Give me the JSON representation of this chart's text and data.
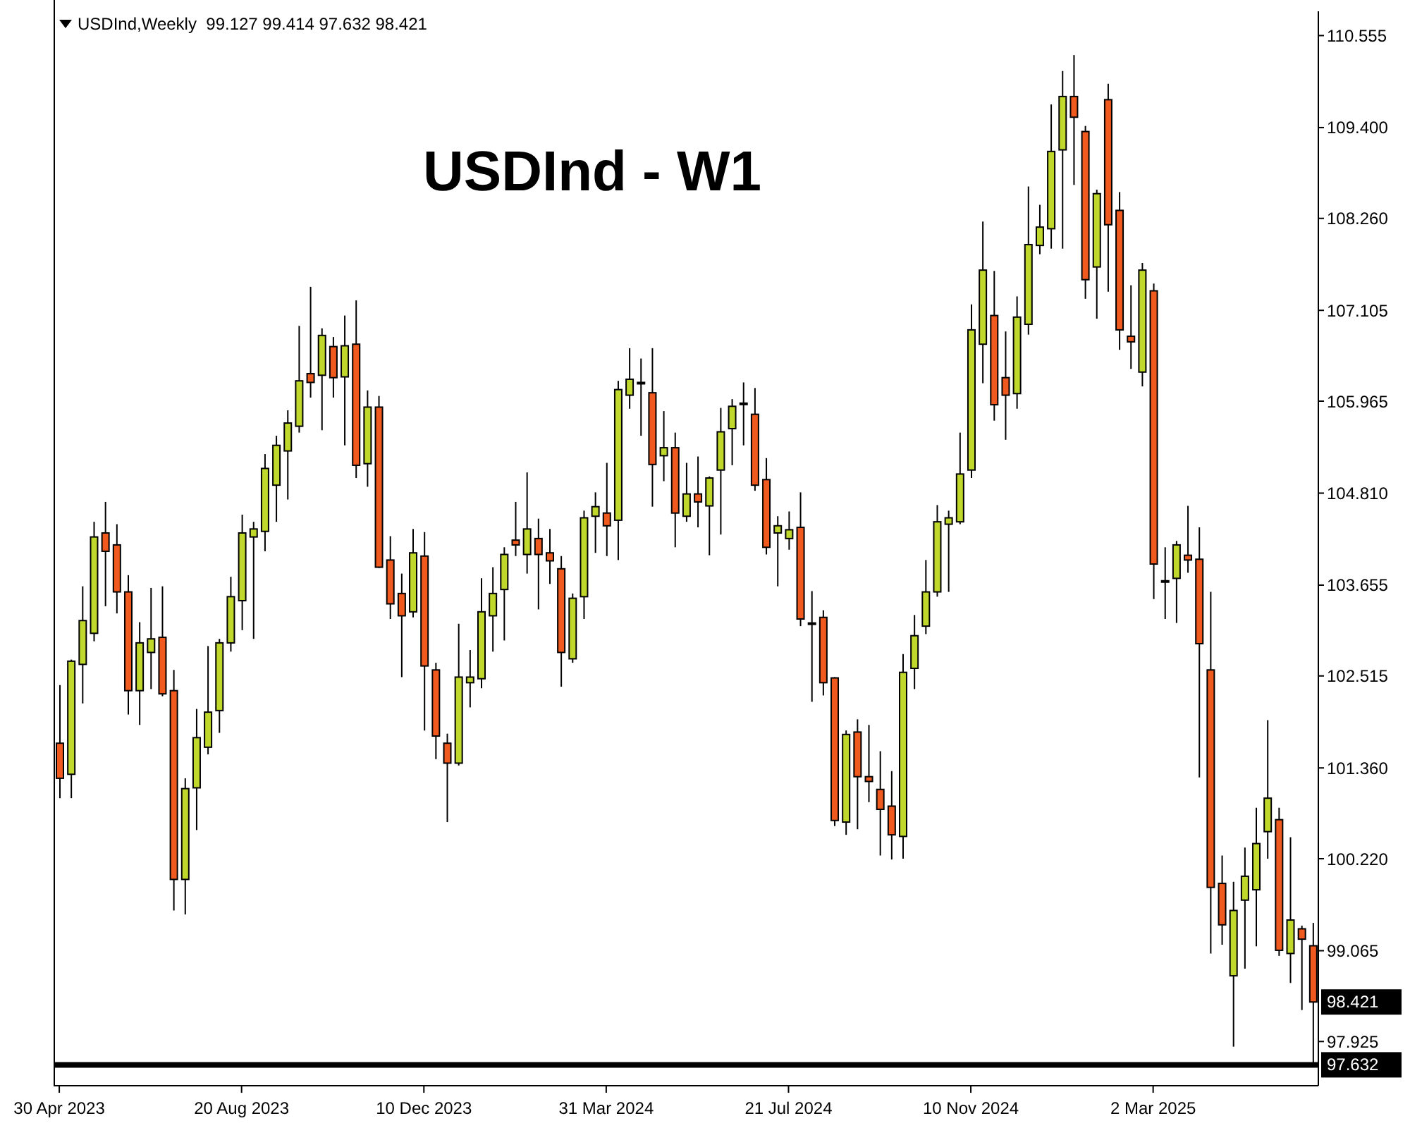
{
  "chart_data": {
    "type": "candlestick",
    "title": "USDInd - W1",
    "subtitle": "USDInd,Weekly  99.127 99.414 97.632 98.421",
    "categories": [
      "30 Apr 2023",
      null,
      null,
      null,
      null,
      null,
      null,
      null,
      null,
      null,
      null,
      null,
      null,
      null,
      null,
      null,
      "20 Aug 2023",
      null,
      null,
      null,
      null,
      null,
      null,
      null,
      null,
      null,
      null,
      null,
      null,
      null,
      null,
      null,
      "10 Dec 2023",
      null,
      null,
      null,
      null,
      null,
      null,
      null,
      null,
      null,
      null,
      null,
      null,
      null,
      null,
      null,
      "31 Mar 2024",
      null,
      null,
      null,
      null,
      null,
      null,
      null,
      null,
      null,
      null,
      null,
      null,
      null,
      null,
      null,
      "21 Jul 2024",
      null,
      null,
      null,
      null,
      null,
      null,
      null,
      null,
      null,
      null,
      null,
      null,
      null,
      null,
      null,
      "10 Nov 2024",
      null,
      null,
      null,
      null,
      null,
      null,
      null,
      null,
      null,
      null,
      null,
      null,
      null,
      null,
      null,
      "2 Mar 2025",
      null,
      null,
      null,
      null,
      null,
      null,
      null,
      null,
      null,
      null,
      null,
      null,
      null,
      null
    ],
    "ohlc": [
      [
        101.67,
        102.4,
        100.98,
        101.23
      ],
      [
        101.28,
        102.72,
        100.98,
        102.7
      ],
      [
        102.66,
        103.64,
        102.17,
        103.21
      ],
      [
        103.05,
        104.45,
        102.95,
        104.26
      ],
      [
        104.31,
        104.7,
        103.39,
        104.08
      ],
      [
        104.16,
        104.42,
        103.3,
        103.57
      ],
      [
        103.57,
        103.78,
        102.03,
        102.33
      ],
      [
        102.33,
        103.19,
        101.9,
        102.93
      ],
      [
        102.81,
        103.62,
        102.35,
        102.98
      ],
      [
        103.0,
        103.64,
        102.26,
        102.29
      ],
      [
        102.33,
        102.59,
        99.57,
        99.96
      ],
      [
        99.96,
        101.23,
        99.52,
        101.1
      ],
      [
        101.11,
        102.1,
        100.58,
        101.74
      ],
      [
        101.62,
        102.89,
        101.53,
        102.06
      ],
      [
        102.08,
        102.98,
        101.8,
        102.93
      ],
      [
        102.93,
        103.76,
        102.82,
        103.51
      ],
      [
        103.46,
        104.54,
        103.09,
        104.31
      ],
      [
        104.26,
        104.45,
        102.98,
        104.36
      ],
      [
        104.33,
        105.3,
        104.08,
        105.12
      ],
      [
        104.91,
        105.53,
        104.45,
        105.41
      ],
      [
        105.34,
        105.85,
        104.73,
        105.69
      ],
      [
        105.65,
        106.91,
        105.57,
        106.22
      ],
      [
        106.31,
        107.4,
        106.01,
        106.2
      ],
      [
        106.29,
        106.88,
        105.6,
        106.79
      ],
      [
        106.65,
        106.77,
        106.01,
        106.26
      ],
      [
        106.27,
        107.04,
        105.41,
        106.66
      ],
      [
        106.68,
        107.23,
        105.0,
        105.16
      ],
      [
        105.18,
        106.1,
        104.89,
        105.89
      ],
      [
        105.89,
        106.03,
        103.87,
        103.88
      ],
      [
        103.97,
        104.27,
        103.23,
        103.42
      ],
      [
        103.55,
        103.8,
        102.5,
        103.27
      ],
      [
        103.32,
        104.36,
        103.25,
        104.06
      ],
      [
        104.02,
        104.32,
        101.83,
        102.64
      ],
      [
        102.59,
        102.68,
        101.47,
        101.76
      ],
      [
        101.67,
        101.79,
        100.68,
        101.42
      ],
      [
        101.42,
        103.17,
        101.39,
        102.5
      ],
      [
        102.43,
        102.84,
        102.12,
        102.5
      ],
      [
        102.48,
        103.74,
        102.36,
        103.32
      ],
      [
        103.27,
        103.88,
        102.82,
        103.55
      ],
      [
        103.6,
        104.13,
        102.96,
        104.04
      ],
      [
        104.22,
        104.7,
        104.02,
        104.16
      ],
      [
        104.04,
        105.07,
        103.8,
        104.36
      ],
      [
        104.24,
        104.49,
        103.35,
        104.04
      ],
      [
        104.06,
        104.36,
        103.67,
        103.96
      ],
      [
        103.86,
        104.02,
        102.38,
        102.81
      ],
      [
        102.73,
        103.55,
        102.68,
        103.49
      ],
      [
        103.51,
        104.59,
        103.23,
        104.5
      ],
      [
        104.52,
        104.82,
        104.06,
        104.64
      ],
      [
        104.56,
        105.19,
        104.02,
        104.4
      ],
      [
        104.47,
        106.22,
        103.97,
        106.11
      ],
      [
        106.04,
        106.63,
        105.87,
        106.24
      ],
      [
        106.2,
        106.5,
        105.53,
        106.2
      ],
      [
        106.07,
        106.63,
        104.64,
        105.17
      ],
      [
        105.28,
        105.84,
        104.96,
        105.38
      ],
      [
        105.38,
        105.57,
        104.13,
        104.56
      ],
      [
        104.52,
        105.19,
        104.45,
        104.8
      ],
      [
        104.8,
        105.27,
        104.38,
        104.7
      ],
      [
        104.65,
        105.02,
        104.03,
        105.0
      ],
      [
        105.1,
        105.88,
        104.29,
        105.58
      ],
      [
        105.62,
        105.99,
        105.16,
        105.9
      ],
      [
        105.94,
        106.2,
        105.41,
        105.94
      ],
      [
        105.8,
        106.13,
        104.84,
        104.91
      ],
      [
        104.98,
        105.25,
        104.04,
        104.13
      ],
      [
        104.31,
        104.52,
        103.64,
        104.4
      ],
      [
        104.24,
        104.58,
        104.1,
        104.35
      ],
      [
        104.38,
        104.82,
        103.14,
        103.23
      ],
      [
        103.18,
        103.58,
        102.19,
        103.18
      ],
      [
        103.25,
        103.34,
        102.27,
        102.43
      ],
      [
        102.49,
        102.5,
        100.63,
        100.7
      ],
      [
        100.68,
        101.83,
        100.52,
        101.78
      ],
      [
        101.81,
        101.97,
        100.59,
        101.25
      ],
      [
        101.25,
        101.9,
        100.93,
        101.19
      ],
      [
        101.09,
        101.57,
        100.26,
        100.84
      ],
      [
        100.88,
        101.32,
        100.21,
        100.52
      ],
      [
        100.5,
        102.79,
        100.22,
        102.56
      ],
      [
        102.61,
        103.28,
        102.35,
        103.02
      ],
      [
        103.14,
        103.97,
        103.04,
        103.57
      ],
      [
        103.57,
        104.66,
        103.51,
        104.45
      ],
      [
        104.42,
        104.59,
        103.57,
        104.5
      ],
      [
        104.45,
        105.57,
        104.42,
        105.05
      ],
      [
        105.1,
        107.18,
        105.0,
        106.86
      ],
      [
        106.68,
        108.22,
        106.19,
        107.61
      ],
      [
        107.04,
        107.6,
        105.72,
        105.92
      ],
      [
        106.26,
        106.84,
        105.48,
        106.04
      ],
      [
        106.06,
        107.28,
        105.87,
        107.02
      ],
      [
        106.93,
        108.66,
        106.8,
        107.93
      ],
      [
        107.92,
        108.43,
        107.81,
        108.15
      ],
      [
        108.13,
        109.69,
        107.88,
        109.1
      ],
      [
        109.12,
        110.11,
        107.88,
        109.79
      ],
      [
        109.79,
        110.31,
        108.68,
        109.53
      ],
      [
        109.35,
        109.42,
        107.25,
        107.49
      ],
      [
        107.65,
        108.62,
        107.0,
        108.57
      ],
      [
        109.75,
        109.95,
        107.34,
        108.18
      ],
      [
        108.36,
        108.59,
        106.61,
        106.86
      ],
      [
        106.78,
        107.42,
        106.37,
        106.71
      ],
      [
        106.33,
        107.7,
        106.15,
        107.61
      ],
      [
        107.35,
        107.44,
        103.48,
        103.92
      ],
      [
        103.71,
        104.13,
        103.23,
        103.71
      ],
      [
        103.74,
        104.21,
        103.18,
        104.16
      ],
      [
        104.03,
        104.65,
        103.81,
        103.97
      ],
      [
        103.98,
        104.38,
        101.24,
        102.92
      ],
      [
        102.59,
        103.57,
        99.03,
        99.86
      ],
      [
        99.91,
        100.26,
        99.14,
        99.39
      ],
      [
        98.75,
        99.93,
        97.86,
        99.57
      ],
      [
        99.7,
        100.36,
        98.84,
        100.0
      ],
      [
        99.83,
        100.86,
        99.12,
        100.41
      ],
      [
        100.56,
        101.96,
        100.22,
        100.98
      ],
      [
        100.71,
        100.86,
        99.0,
        99.07
      ],
      [
        99.03,
        100.49,
        98.66,
        99.45
      ],
      [
        99.34,
        99.38,
        98.32,
        99.21
      ],
      [
        99.127,
        99.414,
        97.632,
        98.421
      ]
    ],
    "colors": [
      "#f05a1e",
      "#c0d82c",
      "#c0d82c",
      "#c0d82c",
      "#f05a1e",
      "#f05a1e",
      "#f05a1e",
      "#c0d82c",
      "#c0d82c",
      "#f05a1e",
      "#f05a1e",
      "#c0d82c",
      "#c0d82c",
      "#c0d82c",
      "#c0d82c",
      "#c0d82c",
      "#c0d82c",
      "#c0d82c",
      "#c0d82c",
      "#c0d82c",
      "#c0d82c",
      "#c0d82c",
      "#f05a1e",
      "#c0d82c",
      "#f05a1e",
      "#c0d82c",
      "#f05a1e",
      "#c0d82c",
      "#f05a1e",
      "#f05a1e",
      "#f05a1e",
      "#c0d82c",
      "#f05a1e",
      "#f05a1e",
      "#f05a1e",
      "#c0d82c",
      "#c0d82c",
      "#c0d82c",
      "#c0d82c",
      "#c0d82c",
      "#f05a1e",
      "#c0d82c",
      "#f05a1e",
      "#f05a1e",
      "#f05a1e",
      "#c0d82c",
      "#c0d82c",
      "#c0d82c",
      "#f05a1e",
      "#c0d82c",
      "#c0d82c",
      "#000000",
      "#f05a1e",
      "#c0d82c",
      "#f05a1e",
      "#c0d82c",
      "#f05a1e",
      "#c0d82c",
      "#c0d82c",
      "#c0d82c",
      "#000000",
      "#f05a1e",
      "#f05a1e",
      "#c0d82c",
      "#c0d82c",
      "#f05a1e",
      "#000000",
      "#f05a1e",
      "#f05a1e",
      "#c0d82c",
      "#f05a1e",
      "#f05a1e",
      "#f05a1e",
      "#f05a1e",
      "#c0d82c",
      "#c0d82c",
      "#c0d82c",
      "#c0d82c",
      "#c0d82c",
      "#c0d82c",
      "#c0d82c",
      "#c0d82c",
      "#f05a1e",
      "#f05a1e",
      "#c0d82c",
      "#c0d82c",
      "#c0d82c",
      "#c0d82c",
      "#c0d82c",
      "#f05a1e",
      "#f05a1e",
      "#c0d82c",
      "#f05a1e",
      "#f05a1e",
      "#f05a1e",
      "#c0d82c",
      "#f05a1e",
      "#000000",
      "#c0d82c",
      "#f05a1e",
      "#f05a1e",
      "#f05a1e",
      "#f05a1e",
      "#c0d82c",
      "#c0d82c",
      "#c0d82c",
      "#c0d82c",
      "#f05a1e",
      "#c0d82c",
      "#f05a1e",
      "#f05a1e"
    ],
    "ylim": [
      97.37,
      110.86
    ],
    "yticks": [
      {
        "value": 97.925,
        "label": "97.925"
      },
      {
        "value": 99.065,
        "label": "99.065"
      },
      {
        "value": 100.22,
        "label": "100.220"
      },
      {
        "value": 101.36,
        "label": "101.360"
      },
      {
        "value": 102.515,
        "label": "102.515"
      },
      {
        "value": 103.655,
        "label": "103.655"
      },
      {
        "value": 104.81,
        "label": "104.810"
      },
      {
        "value": 105.965,
        "label": "105.965"
      },
      {
        "value": 107.105,
        "label": "107.105"
      },
      {
        "value": 108.26,
        "label": "108.260"
      },
      {
        "value": 109.4,
        "label": "109.400"
      },
      {
        "value": 110.555,
        "label": "110.555"
      }
    ],
    "ref_lines": [
      {
        "axis": "y",
        "value": 97.632,
        "label": "97.632",
        "color": "#000000"
      }
    ],
    "annotations": [
      "98.421"
    ]
  }
}
